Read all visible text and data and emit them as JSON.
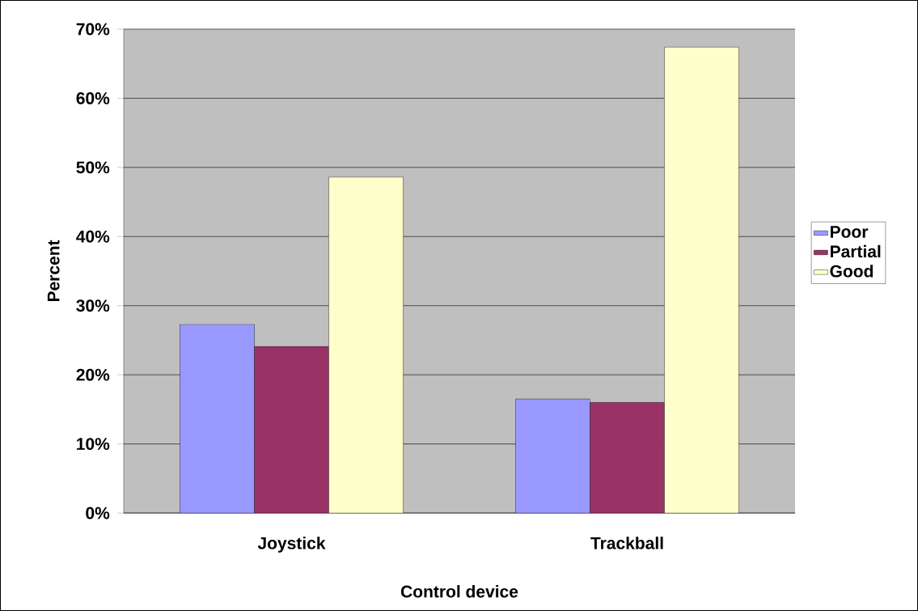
{
  "chart_data": {
    "type": "bar",
    "xlabel": "Control device",
    "ylabel": "Percent",
    "categories": [
      "Joystick",
      "Trackball"
    ],
    "series": [
      {
        "name": "Poor",
        "color": "#9999ff",
        "values": [
          27.3,
          16.5
        ]
      },
      {
        "name": "Partial",
        "color": "#993366",
        "values": [
          24.1,
          16.0
        ]
      },
      {
        "name": "Good",
        "color": "#ffffcc",
        "values": [
          48.6,
          67.4
        ]
      }
    ],
    "ylim": [
      0,
      70
    ],
    "yticks": [
      {
        "value": 0,
        "label": "0%"
      },
      {
        "value": 10,
        "label": "10%"
      },
      {
        "value": 20,
        "label": "20%"
      },
      {
        "value": 30,
        "label": "30%"
      },
      {
        "value": 40,
        "label": "40%"
      },
      {
        "value": 50,
        "label": "50%"
      },
      {
        "value": 60,
        "label": "60%"
      },
      {
        "value": 70,
        "label": "70%"
      }
    ],
    "grid": "y",
    "legend": "right"
  }
}
